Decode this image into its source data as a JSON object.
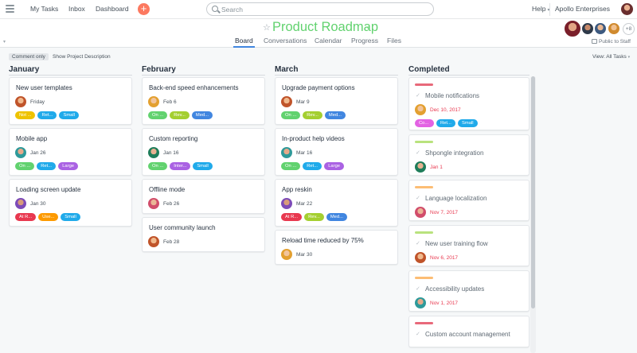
{
  "topbar": {
    "nav": [
      "My Tasks",
      "Inbox",
      "Dashboard"
    ],
    "add_label": "+",
    "search_placeholder": "Search",
    "help": "Help",
    "help_caret": "▾",
    "org": "Apollo Enterprises"
  },
  "project": {
    "star_icon": "☆",
    "title": "Product Roadmap",
    "title_caret": "⌄",
    "tabs": [
      "Board",
      "Conversations",
      "Calendar",
      "Progress",
      "Files"
    ],
    "active_tab": "Board",
    "member_overflow": "+8",
    "public_label": "Public to Staff"
  },
  "subbar": {
    "comment_only": "Comment only",
    "show_desc": "Show Project Description",
    "view_all": "View: All Tasks",
    "view_caret": "▾"
  },
  "colors": {
    "green": "#62d26f",
    "teal": "#37c5ab",
    "sky": "#20aaea",
    "blue": "#4186e0",
    "purple": "#aa62e3",
    "olive": "#a4cf30",
    "red": "#e8384f",
    "orange": "#fd9a00",
    "yellow": "#eec300",
    "magenta": "#e362e3",
    "pinkbar": "#e8697a",
    "amberbar": "#fcbd74",
    "limebar": "#b9e27d"
  },
  "columns": [
    {
      "name": "January",
      "cards": [
        {
          "title": "New user templates",
          "date": "Friday",
          "tags": [
            [
              "Not ...",
              "yellow"
            ],
            [
              "Ret...",
              "sky"
            ],
            [
              "Small",
              "sky"
            ]
          ]
        },
        {
          "title": "Mobile app",
          "date": "Jan 26",
          "tags": [
            [
              "On ...",
              "green"
            ],
            [
              "Ret...",
              "sky"
            ],
            [
              "Large",
              "purple"
            ]
          ]
        },
        {
          "title": "Loading screen update",
          "date": "Jan 30",
          "tags": [
            [
              "At R...",
              "red"
            ],
            [
              "Use...",
              "orange"
            ],
            [
              "Small",
              "sky"
            ]
          ]
        }
      ]
    },
    {
      "name": "February",
      "cards": [
        {
          "title": "Back-end speed enhancements",
          "date": "Feb 6",
          "tags": [
            [
              "On ...",
              "green"
            ],
            [
              "Rev...",
              "olive"
            ],
            [
              "Med...",
              "blue"
            ]
          ]
        },
        {
          "title": "Custom reporting",
          "date": "Jan 16",
          "tags": [
            [
              "On ...",
              "green"
            ],
            [
              "Inter...",
              "purple"
            ],
            [
              "Small",
              "sky"
            ]
          ]
        },
        {
          "title": "Offline mode",
          "date": "Feb 26",
          "tags": []
        },
        {
          "title": "User community launch",
          "date": "Feb 28",
          "tags": []
        }
      ]
    },
    {
      "name": "March",
      "cards": [
        {
          "title": "Upgrade payment options",
          "date": "Mar 9",
          "tags": [
            [
              "On ...",
              "green"
            ],
            [
              "Rev...",
              "olive"
            ],
            [
              "Med...",
              "blue"
            ]
          ]
        },
        {
          "title": "In-product help videos",
          "date": "Mar 16",
          "tags": [
            [
              "On ...",
              "green"
            ],
            [
              "Ret...",
              "sky"
            ],
            [
              "Large",
              "purple"
            ]
          ]
        },
        {
          "title": "App reskin",
          "date": "Mar 22",
          "tags": [
            [
              "At R...",
              "red"
            ],
            [
              "Rev...",
              "olive"
            ],
            [
              "Med...",
              "blue"
            ]
          ]
        },
        {
          "title": "Reload time reduced by 75%",
          "date": "Mar 30",
          "tags": []
        }
      ]
    },
    {
      "name": "Completed",
      "cards": [
        {
          "title": "Mobile notifications",
          "date": "Dec 10, 2017",
          "bar": "pinkbar",
          "tags": [
            [
              "Co...",
              "magenta"
            ],
            [
              "Ret...",
              "sky"
            ],
            [
              "Small",
              "sky"
            ]
          ]
        },
        {
          "title": "Shpongle integration",
          "date": "Jan 1",
          "bar": "limebar",
          "tags": []
        },
        {
          "title": "Language localization",
          "date": "Nov 7, 2017",
          "bar": "amberbar",
          "tags": []
        },
        {
          "title": "New user training flow",
          "date": "Nov 6, 2017",
          "bar": "limebar",
          "tags": []
        },
        {
          "title": "Accessibility updates",
          "date": "Nov 1, 2017",
          "bar": "amberbar",
          "tags": []
        },
        {
          "title": "Custom account management",
          "date": "",
          "bar": "pinkbar",
          "tags": []
        }
      ]
    }
  ]
}
